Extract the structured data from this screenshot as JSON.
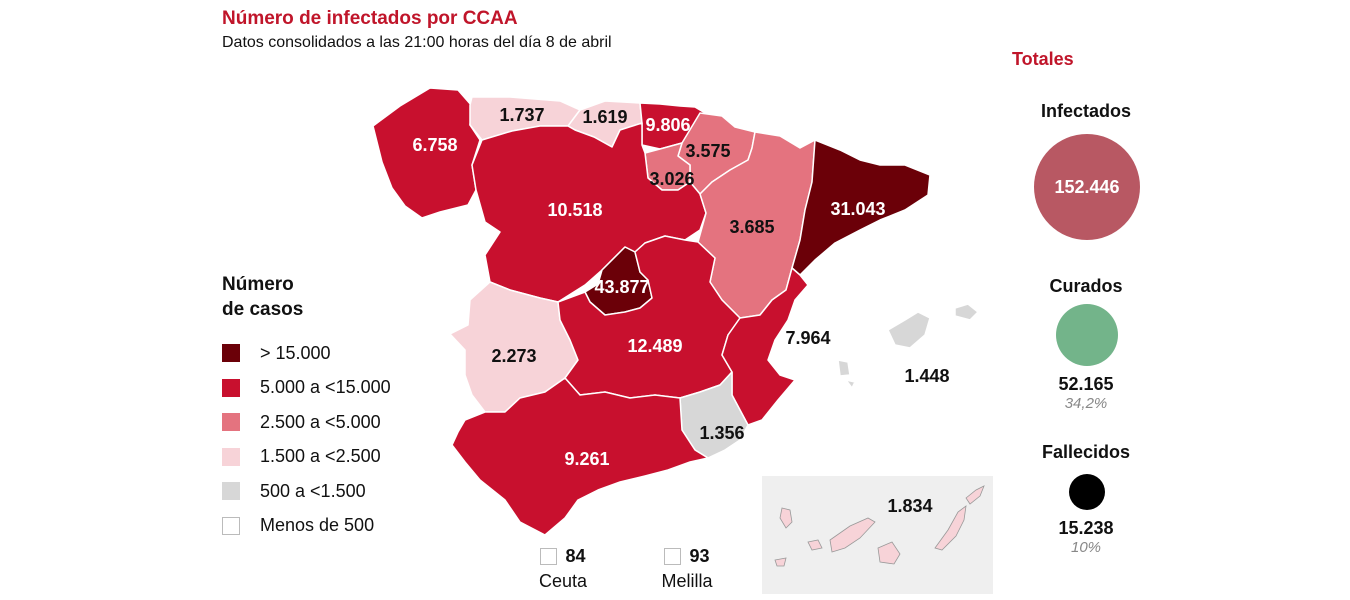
{
  "title": "Número de infectados por CCAA",
  "subtitle": "Datos consolidados a las 21:00 horas del día 8 de abril",
  "colors": {
    "gt15000": "#6b0008",
    "r5000_15000": "#c8102e",
    "r2500_5000": "#e4737f",
    "r1500_2500": "#f7d3d8",
    "r500_1500": "#d7d7d7",
    "lt500": "#ffffff",
    "infectados_circle": "#b85863",
    "curados_circle": "#73b48a",
    "fallecidos_circle": "#000000",
    "accent": "#c0152a"
  },
  "legend": {
    "title_line1": "Número",
    "title_line2": "de casos",
    "items": [
      {
        "label": "> 15.000",
        "color": "#6b0008"
      },
      {
        "label": "5.000 a <15.000",
        "color": "#c8102e"
      },
      {
        "label": "2.500 a <5.000",
        "color": "#e4737f"
      },
      {
        "label": "1.500 a <2.500",
        "color": "#f7d3d8"
      },
      {
        "label": "500 a <1.500",
        "color": "#d7d7d7"
      },
      {
        "label": "Menos de 500",
        "color": "#ffffff"
      }
    ]
  },
  "regions": [
    {
      "id": "galicia",
      "value": "6.758"
    },
    {
      "id": "asturias",
      "value": "1.737"
    },
    {
      "id": "cantabria",
      "value": "1.619"
    },
    {
      "id": "pais-vasco",
      "value": "9.806"
    },
    {
      "id": "navarra",
      "value": "3.575"
    },
    {
      "id": "la-rioja",
      "value": "3.026"
    },
    {
      "id": "castilla-leon",
      "value": "10.518"
    },
    {
      "id": "aragon",
      "value": "3.685"
    },
    {
      "id": "cataluna",
      "value": "31.043"
    },
    {
      "id": "madrid",
      "value": "43.877"
    },
    {
      "id": "extremadura",
      "value": "2.273"
    },
    {
      "id": "castilla-la-mancha",
      "value": "12.489"
    },
    {
      "id": "valencia",
      "value": "7.964"
    },
    {
      "id": "baleares",
      "value": "1.448"
    },
    {
      "id": "murcia",
      "value": "1.356"
    },
    {
      "id": "andalucia",
      "value": "9.261"
    },
    {
      "id": "canarias",
      "value": "1.834"
    }
  ],
  "cities": [
    {
      "name": "Ceuta",
      "value": "84"
    },
    {
      "name": "Melilla",
      "value": "93"
    }
  ],
  "totals": {
    "title": "Totales",
    "infectados_label": "Infectados",
    "infectados_value": "152.446",
    "curados_label": "Curados",
    "curados_value": "52.165",
    "curados_pct": "34,2%",
    "fallecidos_label": "Fallecidos",
    "fallecidos_value": "15.238",
    "fallecidos_pct": "10%"
  }
}
